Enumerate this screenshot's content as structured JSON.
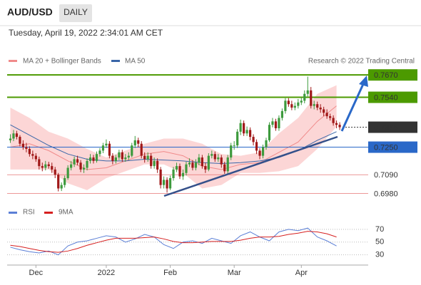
{
  "chart_data": {
    "type": "candlestick",
    "symbol": "AUD/USD",
    "timeframe": "DAILY",
    "timestamp": "Tuesday, April 19, 2022 2:34:01 AM CET",
    "credit": "Research © 2022 Trading Central",
    "up_color": "#3d9a3d",
    "down_color": "#a01818",
    "xlim": [
      -1,
      112.8
    ],
    "xticks": [
      {
        "value": 8,
        "label": "Dec"
      },
      {
        "value": 30,
        "label": "2022"
      },
      {
        "value": 50,
        "label": "Feb"
      },
      {
        "value": 70,
        "label": "Mar"
      },
      {
        "value": 91,
        "label": "Apr"
      }
    ],
    "ylim": [
      0.6925,
      0.794
    ],
    "candles": [
      [
        0.729,
        0.7325,
        0.7275,
        0.73
      ],
      [
        0.73,
        0.735,
        0.7285,
        0.733
      ],
      [
        0.733,
        0.7345,
        0.7295,
        0.731
      ],
      [
        0.731,
        0.732,
        0.7255,
        0.727
      ],
      [
        0.727,
        0.729,
        0.7235,
        0.725
      ],
      [
        0.725,
        0.7275,
        0.722,
        0.724
      ],
      [
        0.724,
        0.7255,
        0.7195,
        0.721
      ],
      [
        0.721,
        0.723,
        0.718,
        0.72
      ],
      [
        0.72,
        0.7215,
        0.7165,
        0.718
      ],
      [
        0.718,
        0.7195,
        0.712,
        0.714
      ],
      [
        0.714,
        0.716,
        0.711,
        0.713
      ],
      [
        0.713,
        0.717,
        0.7115,
        0.715
      ],
      [
        0.715,
        0.7165,
        0.7125,
        0.714
      ],
      [
        0.714,
        0.716,
        0.71,
        0.712
      ],
      [
        0.712,
        0.7135,
        0.707,
        0.709
      ],
      [
        0.709,
        0.71,
        0.6993,
        0.701
      ],
      [
        0.701,
        0.7045,
        0.6995,
        0.703
      ],
      [
        0.703,
        0.7085,
        0.7015,
        0.707
      ],
      [
        0.707,
        0.7145,
        0.706,
        0.713
      ],
      [
        0.713,
        0.717,
        0.7115,
        0.715
      ],
      [
        0.715,
        0.7195,
        0.7135,
        0.718
      ],
      [
        0.718,
        0.72,
        0.7145,
        0.716
      ],
      [
        0.716,
        0.7175,
        0.7105,
        0.712
      ],
      [
        0.712,
        0.715,
        0.71,
        0.713
      ],
      [
        0.713,
        0.7185,
        0.7115,
        0.717
      ],
      [
        0.717,
        0.721,
        0.7155,
        0.719
      ],
      [
        0.719,
        0.7205,
        0.7155,
        0.717
      ],
      [
        0.717,
        0.7225,
        0.716,
        0.721
      ],
      [
        0.721,
        0.7245,
        0.7195,
        0.723
      ],
      [
        0.723,
        0.7275,
        0.7215,
        0.726
      ],
      [
        0.726,
        0.7295,
        0.7245,
        0.727
      ],
      [
        0.727,
        0.7285,
        0.7185,
        0.72
      ],
      [
        0.72,
        0.7215,
        0.715,
        0.717
      ],
      [
        0.717,
        0.7205,
        0.7155,
        0.719
      ],
      [
        0.719,
        0.7235,
        0.7175,
        0.722
      ],
      [
        0.722,
        0.7235,
        0.7165,
        0.718
      ],
      [
        0.718,
        0.721,
        0.7165,
        0.719
      ],
      [
        0.719,
        0.722,
        0.7175,
        0.72
      ],
      [
        0.72,
        0.7275,
        0.719,
        0.726
      ],
      [
        0.726,
        0.7315,
        0.7245,
        0.729
      ],
      [
        0.729,
        0.7305,
        0.725,
        0.727
      ],
      [
        0.727,
        0.7285,
        0.7185,
        0.72
      ],
      [
        0.72,
        0.722,
        0.716,
        0.718
      ],
      [
        0.718,
        0.722,
        0.7165,
        0.72
      ],
      [
        0.72,
        0.7215,
        0.7125,
        0.714
      ],
      [
        0.714,
        0.719,
        0.7125,
        0.717
      ],
      [
        0.717,
        0.7185,
        0.71,
        0.712
      ],
      [
        0.712,
        0.7135,
        0.701,
        0.703
      ],
      [
        0.703,
        0.708,
        0.701,
        0.706
      ],
      [
        0.706,
        0.7075,
        0.6986,
        0.701
      ],
      [
        0.701,
        0.7085,
        0.7,
        0.707
      ],
      [
        0.707,
        0.7135,
        0.7055,
        0.712
      ],
      [
        0.712,
        0.716,
        0.7105,
        0.714
      ],
      [
        0.714,
        0.7155,
        0.7065,
        0.708
      ],
      [
        0.708,
        0.712,
        0.706,
        0.71
      ],
      [
        0.71,
        0.7165,
        0.7085,
        0.715
      ],
      [
        0.715,
        0.7185,
        0.7135,
        0.716
      ],
      [
        0.716,
        0.7175,
        0.7115,
        0.713
      ],
      [
        0.713,
        0.718,
        0.7115,
        0.716
      ],
      [
        0.716,
        0.721,
        0.7145,
        0.719
      ],
      [
        0.719,
        0.7205,
        0.7125,
        0.714
      ],
      [
        0.714,
        0.716,
        0.71,
        0.712
      ],
      [
        0.712,
        0.7215,
        0.711,
        0.72
      ],
      [
        0.72,
        0.723,
        0.7185,
        0.721
      ],
      [
        0.721,
        0.7225,
        0.7165,
        0.718
      ],
      [
        0.718,
        0.721,
        0.7165,
        0.719
      ],
      [
        0.719,
        0.7205,
        0.713,
        0.715
      ],
      [
        0.715,
        0.7165,
        0.7095,
        0.711
      ],
      [
        0.711,
        0.7205,
        0.7095,
        0.719
      ],
      [
        0.719,
        0.7275,
        0.7175,
        0.726
      ],
      [
        0.726,
        0.7285,
        0.7235,
        0.726
      ],
      [
        0.726,
        0.7355,
        0.7245,
        0.734
      ],
      [
        0.734,
        0.741,
        0.732,
        0.739
      ],
      [
        0.739,
        0.7405,
        0.7315,
        0.733
      ],
      [
        0.733,
        0.737,
        0.7315,
        0.735
      ],
      [
        0.735,
        0.7365,
        0.729,
        0.731
      ],
      [
        0.731,
        0.7325,
        0.726,
        0.728
      ],
      [
        0.728,
        0.7295,
        0.721,
        0.723
      ],
      [
        0.723,
        0.7245,
        0.718,
        0.72
      ],
      [
        0.72,
        0.7265,
        0.7185,
        0.725
      ],
      [
        0.725,
        0.7305,
        0.7235,
        0.729
      ],
      [
        0.729,
        0.7395,
        0.728,
        0.738
      ],
      [
        0.738,
        0.742,
        0.7365,
        0.74
      ],
      [
        0.74,
        0.7415,
        0.7345,
        0.736
      ],
      [
        0.736,
        0.7435,
        0.7345,
        0.742
      ],
      [
        0.742,
        0.7475,
        0.7405,
        0.746
      ],
      [
        0.746,
        0.7535,
        0.7445,
        0.752
      ],
      [
        0.752,
        0.7535,
        0.7485,
        0.75
      ],
      [
        0.75,
        0.752,
        0.7465,
        0.748
      ],
      [
        0.748,
        0.751,
        0.7465,
        0.749
      ],
      [
        0.749,
        0.753,
        0.7475,
        0.751
      ],
      [
        0.751,
        0.754,
        0.7495,
        0.752
      ],
      [
        0.752,
        0.758,
        0.7505,
        0.756
      ],
      [
        0.756,
        0.766,
        0.7545,
        0.758
      ],
      [
        0.758,
        0.76,
        0.7475,
        0.749
      ],
      [
        0.749,
        0.752,
        0.747,
        0.75
      ],
      [
        0.75,
        0.7515,
        0.7465,
        0.748
      ],
      [
        0.748,
        0.75,
        0.745,
        0.747
      ],
      [
        0.747,
        0.7485,
        0.743,
        0.745
      ],
      [
        0.745,
        0.747,
        0.7415,
        0.743
      ],
      [
        0.743,
        0.7445,
        0.7405,
        0.742
      ],
      [
        0.742,
        0.7435,
        0.7375,
        0.739
      ],
      [
        0.739,
        0.7405,
        0.736,
        0.738
      ],
      [
        0.738,
        0.7395,
        0.735,
        0.7366
      ]
    ],
    "indicators": {
      "x": [
        0,
        6,
        12,
        18,
        24,
        30,
        36,
        42,
        48,
        54,
        60,
        66,
        72,
        78,
        84,
        90,
        96,
        102
      ],
      "series": [
        {
          "name": "MA 20 + Bollinger Bands",
          "color": "#f08a8a",
          "band_color": "#fcd6d6",
          "values": [
            0.725,
            0.727,
            0.723,
            0.717,
            0.712,
            0.713,
            0.717,
            0.721,
            0.7225,
            0.72,
            0.714,
            0.712,
            0.715,
            0.716,
            0.722,
            0.728,
            0.74,
            0.749
          ],
          "upper": [
            0.748,
            0.742,
            0.734,
            0.73,
            0.724,
            0.719,
            0.723,
            0.727,
            0.73,
            0.73,
            0.727,
            0.721,
            0.72,
            0.722,
            0.733,
            0.742,
            0.756,
            0.761
          ],
          "lower": [
            0.712,
            0.712,
            0.712,
            0.704,
            0.7,
            0.707,
            0.711,
            0.715,
            0.715,
            0.71,
            0.701,
            0.703,
            0.71,
            0.71,
            0.711,
            0.714,
            0.724,
            0.737
          ]
        },
        {
          "name": "MA 50",
          "color": "#3a66a8",
          "values": [
            0.738,
            0.732,
            0.726,
            0.721,
            0.718,
            0.717,
            0.717,
            0.718,
            0.7175,
            0.717,
            0.716,
            0.7155,
            0.716,
            0.717,
            0.719,
            0.723,
            0.729,
            0.734
          ]
        }
      ]
    },
    "levels": [
      {
        "value": 0.767,
        "label": "0.7670",
        "color": "#4c9a00",
        "weight": 2,
        "box": true,
        "dotted": false
      },
      {
        "value": 0.754,
        "label": "0.7540",
        "color": "#4c9a00",
        "weight": 2,
        "box": true,
        "dotted": false
      },
      {
        "value": 0.7366,
        "label": "0.7366",
        "color": "#333333",
        "weight": 1,
        "box": true,
        "dotted": true
      },
      {
        "value": 0.725,
        "label": "0.7250",
        "color": "#2a68c8",
        "weight": 1,
        "box": true,
        "dotted": false
      },
      {
        "value": 0.709,
        "label": "0.7090",
        "color": "#e05a5a",
        "weight": 0.6,
        "box": false,
        "dotted": false
      },
      {
        "value": 0.698,
        "label": "0.6980",
        "color": "#e05a5a",
        "weight": 0.6,
        "box": false,
        "dotted": false
      }
    ],
    "rsi": {
      "x": [
        0,
        3,
        6,
        9,
        12,
        15,
        18,
        21,
        24,
        27,
        30,
        33,
        36,
        39,
        42,
        45,
        48,
        51,
        54,
        57,
        60,
        63,
        66,
        69,
        72,
        75,
        78,
        81,
        84,
        87,
        90,
        93,
        96,
        99,
        102
      ],
      "ylim": [
        14,
        90
      ],
      "yticks": [
        30,
        50,
        70
      ],
      "series": [
        {
          "name": "RSI",
          "color": "#5b7fd6",
          "values": [
            42,
            38,
            35,
            33,
            36,
            30,
            44,
            50,
            52,
            56,
            60,
            58,
            50,
            55,
            62,
            58,
            46,
            40,
            50,
            52,
            48,
            56,
            52,
            48,
            60,
            66,
            58,
            52,
            66,
            70,
            68,
            72,
            58,
            52,
            44
          ]
        },
        {
          "name": "9MA",
          "color": "#d62020",
          "values": [
            45,
            43,
            40,
            37,
            35,
            34,
            36,
            40,
            45,
            49,
            53,
            56,
            56,
            56,
            57,
            58,
            55,
            51,
            49,
            49,
            50,
            51,
            51,
            51,
            53,
            56,
            58,
            58,
            59,
            62,
            64,
            67,
            66,
            63,
            58
          ]
        }
      ]
    }
  }
}
